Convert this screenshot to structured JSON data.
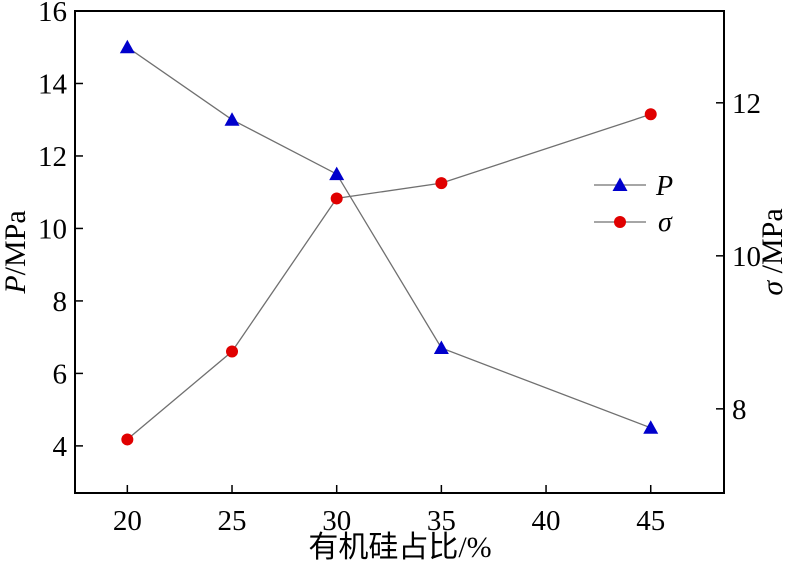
{
  "chart_data": {
    "type": "line",
    "x": [
      20,
      25,
      30,
      35,
      45
    ],
    "xticks": [
      20,
      25,
      30,
      35,
      40,
      45
    ],
    "xlim": [
      17.5,
      48.5
    ],
    "xlabel": "有机硅占比/%",
    "y_left": {
      "label_var": "P",
      "label_unit": "/MPa",
      "lim": [
        2.7,
        16
      ],
      "ticks": [
        4,
        6,
        8,
        10,
        12,
        14,
        16
      ]
    },
    "y_right": {
      "label_var": "σ",
      "label_unit": " /MPa",
      "lim": [
        6.9,
        13.2
      ],
      "ticks": [
        8,
        10,
        12
      ]
    },
    "series": [
      {
        "name": "P",
        "axis": "left",
        "marker": "triangle",
        "color": "#0000cc",
        "values": [
          15.0,
          13.0,
          11.5,
          6.7,
          4.5
        ]
      },
      {
        "name": "σ",
        "axis": "right",
        "marker": "circle",
        "color": "#e00000",
        "values": [
          7.6,
          8.75,
          10.75,
          10.95,
          11.85
        ]
      }
    ],
    "line_color": "#707070",
    "legend_position": "right-middle",
    "grid": false
  }
}
